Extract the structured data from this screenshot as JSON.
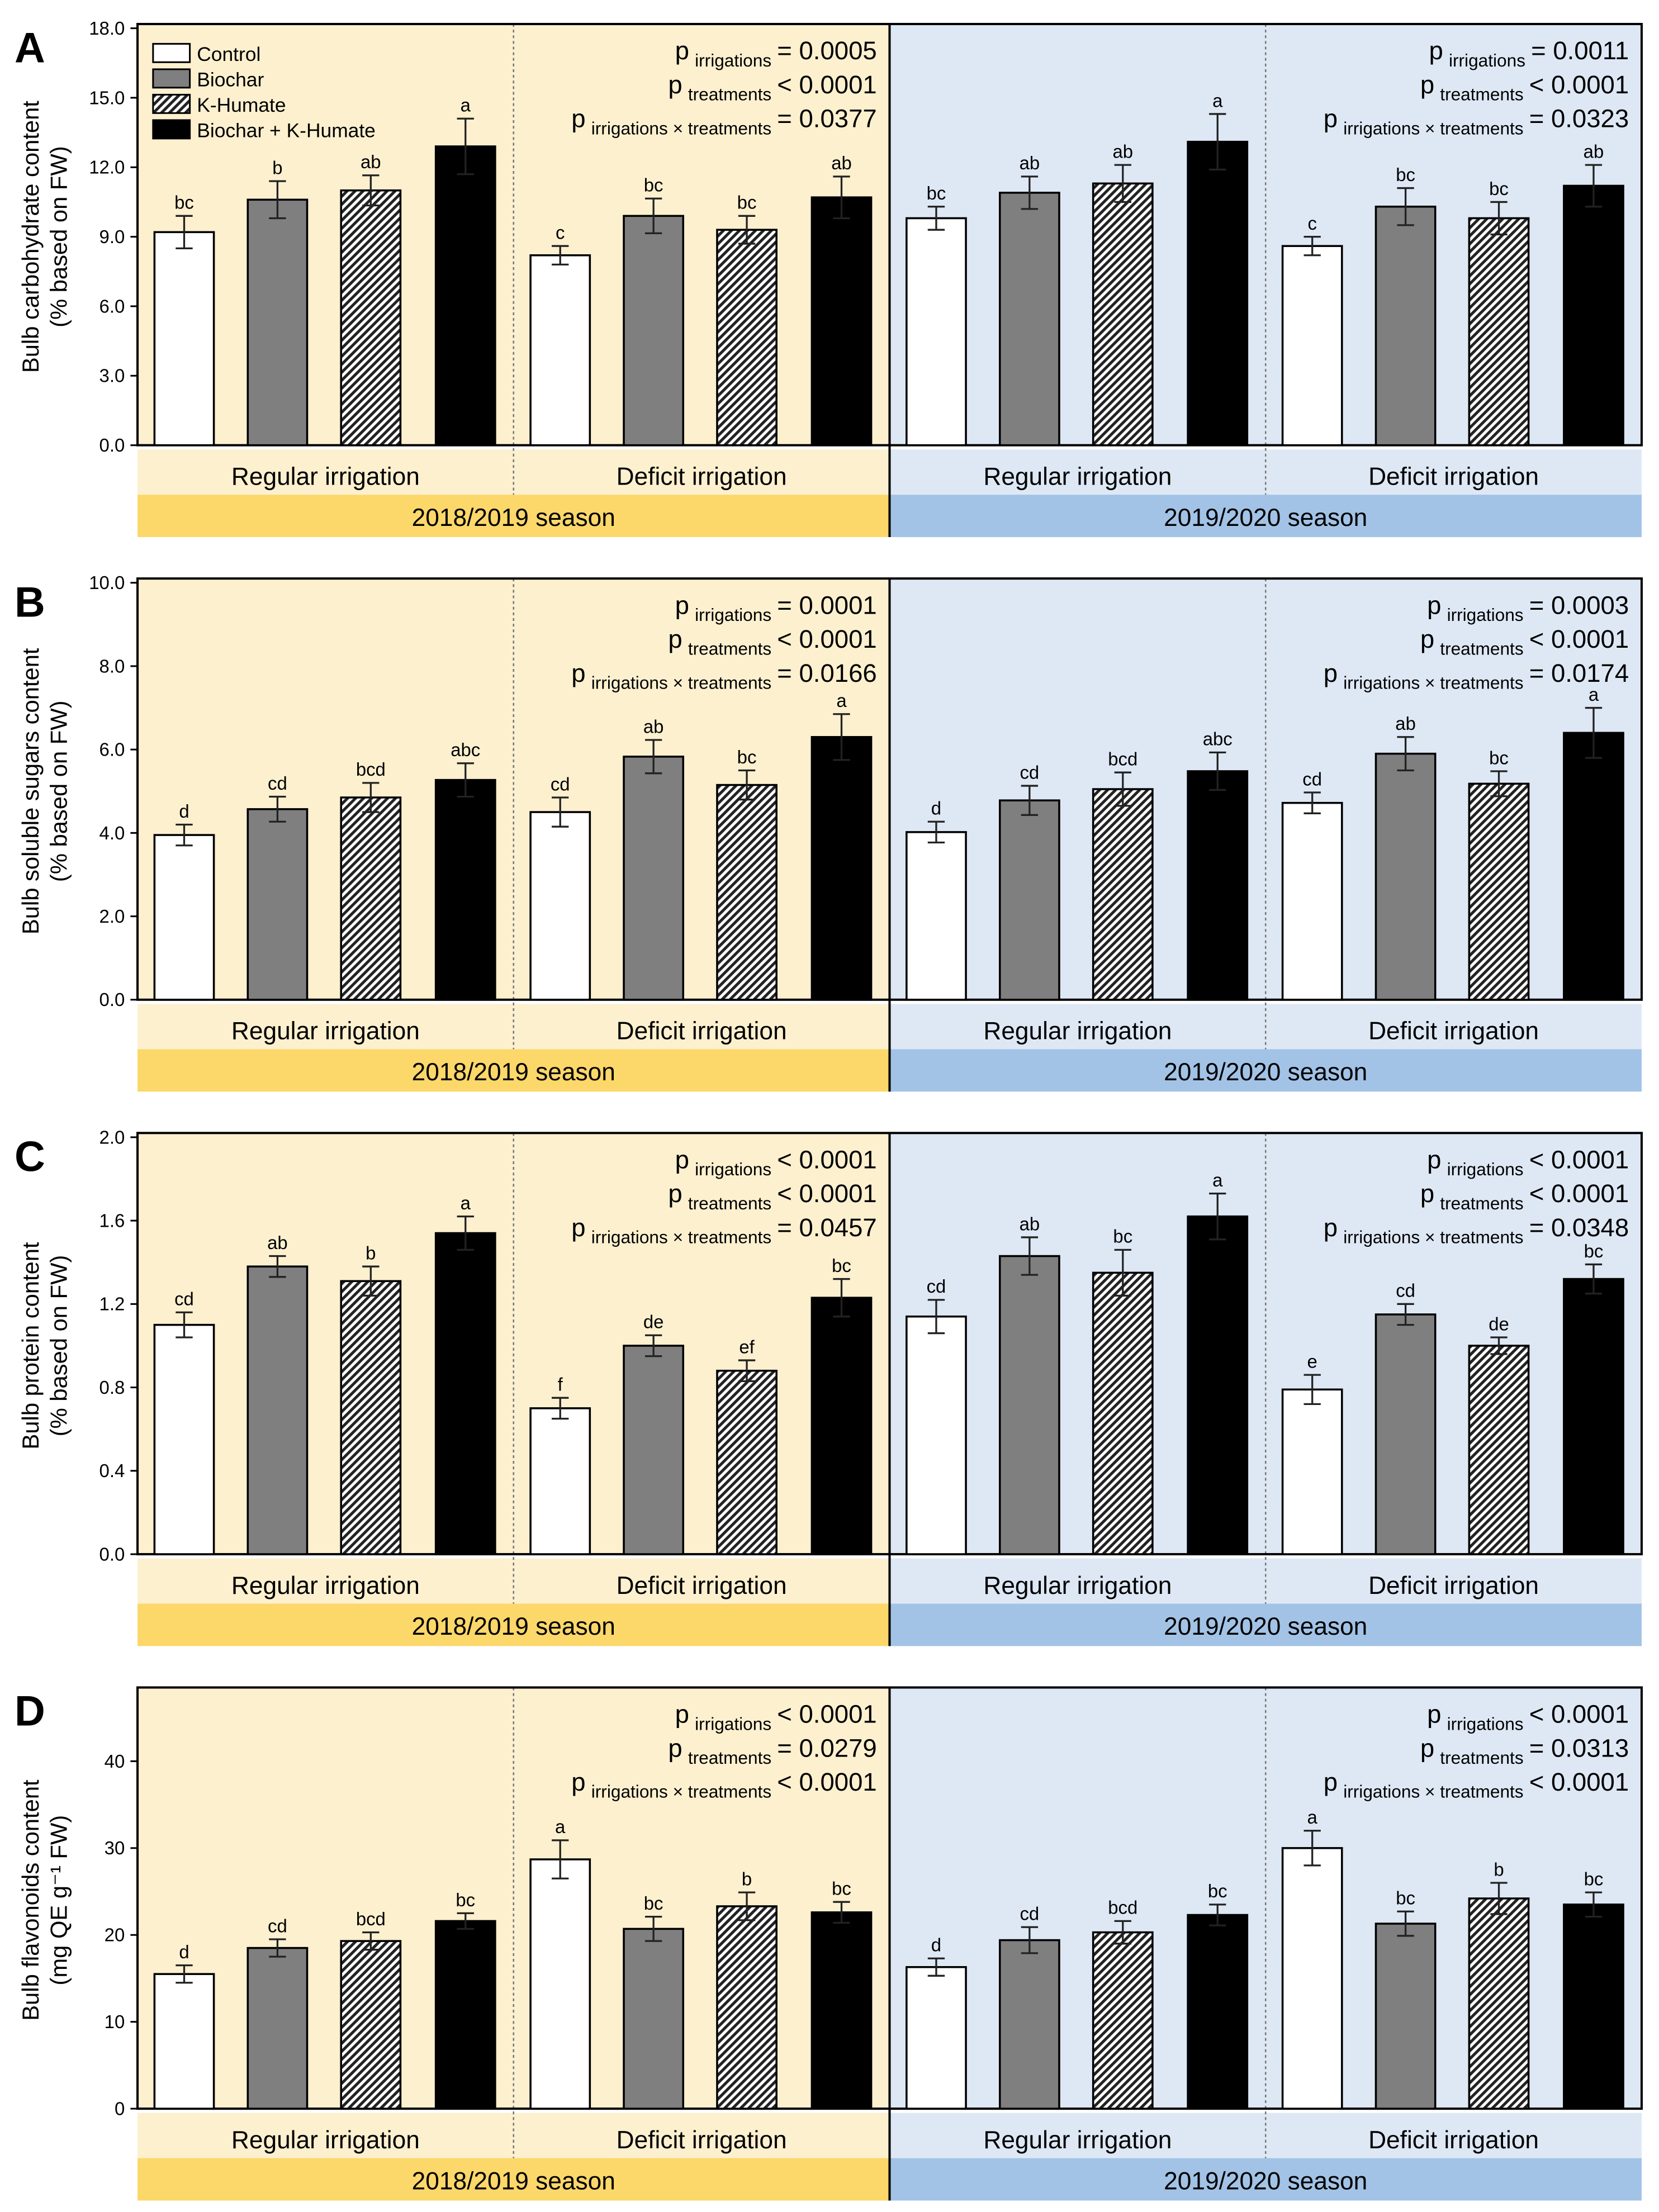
{
  "legend": [
    "Control",
    "Biochar",
    "K-Humate",
    "Biochar + K-Humate"
  ],
  "irrigation_labels": [
    "Regular irrigation",
    "Deficit irrigation"
  ],
  "season_labels": [
    "2018/2019 season",
    "2019/2020 season"
  ],
  "p_labels": {
    "p": "p",
    "irr": "irrigations",
    "trt": "treatments",
    "int": "irrigations × treatments"
  },
  "colors": {
    "season1_bg": "#fdf0cf",
    "season1_band": "#fcd76a",
    "season2_bg": "#dee8f5",
    "season2_band": "#a2c3e6",
    "biochar": "#7f7f7f",
    "combo": "#000000",
    "control": "#ffffff"
  },
  "chart_data": [
    {
      "type": "bar",
      "panel": "A",
      "ylabel": [
        "Bulb carbohydrate content",
        "(% based on FW)"
      ],
      "ylim": [
        0,
        18
      ],
      "ticks": [
        0,
        3,
        6,
        9,
        12,
        15,
        18
      ],
      "tick_labels": [
        "0.0",
        "3.0",
        "6.0",
        "9.0",
        "12.0",
        "15.0",
        "18.0"
      ],
      "groups": [
        {
          "season": "2018/2019",
          "irrigation": "Regular",
          "values": [
            9.2,
            10.6,
            11.0,
            12.9
          ],
          "errors": [
            0.7,
            0.8,
            0.65,
            1.2
          ],
          "letters": [
            "bc",
            "b",
            "ab",
            "a"
          ]
        },
        {
          "season": "2018/2019",
          "irrigation": "Deficit",
          "values": [
            8.2,
            9.9,
            9.3,
            10.7
          ],
          "errors": [
            0.4,
            0.75,
            0.6,
            0.9
          ],
          "letters": [
            "c",
            "bc",
            "bc",
            "ab"
          ]
        },
        {
          "season": "2019/2020",
          "irrigation": "Regular",
          "values": [
            9.8,
            10.9,
            11.3,
            13.1
          ],
          "errors": [
            0.5,
            0.7,
            0.8,
            1.2
          ],
          "letters": [
            "bc",
            "ab",
            "ab",
            "a"
          ]
        },
        {
          "season": "2019/2020",
          "irrigation": "Deficit",
          "values": [
            8.6,
            10.3,
            9.8,
            11.2
          ],
          "errors": [
            0.4,
            0.8,
            0.7,
            0.9
          ],
          "letters": [
            "c",
            "bc",
            "bc",
            "ab"
          ]
        }
      ],
      "pvalues": [
        [
          "= 0.0005",
          "< 0.0001",
          "= 0.0377"
        ],
        [
          "= 0.0011",
          "< 0.0001",
          "= 0.0323"
        ]
      ]
    },
    {
      "type": "bar",
      "panel": "B",
      "ylabel": [
        "Bulb soluble sugars content",
        "(% based on FW)"
      ],
      "ylim": [
        0,
        10
      ],
      "ticks": [
        0,
        2,
        4,
        6,
        8,
        10
      ],
      "tick_labels": [
        "0.0",
        "2.0",
        "4.0",
        "6.0",
        "8.0",
        "10.0"
      ],
      "groups": [
        {
          "season": "2018/2019",
          "irrigation": "Regular",
          "values": [
            3.95,
            4.57,
            4.85,
            5.27
          ],
          "errors": [
            0.25,
            0.3,
            0.35,
            0.4
          ],
          "letters": [
            "d",
            "cd",
            "bcd",
            "abc"
          ]
        },
        {
          "season": "2018/2019",
          "irrigation": "Deficit",
          "values": [
            4.5,
            5.83,
            5.15,
            6.3
          ],
          "errors": [
            0.35,
            0.4,
            0.35,
            0.55
          ],
          "letters": [
            "cd",
            "ab",
            "bc",
            "a"
          ]
        },
        {
          "season": "2019/2020",
          "irrigation": "Regular",
          "values": [
            4.02,
            4.78,
            5.05,
            5.48
          ],
          "errors": [
            0.25,
            0.35,
            0.4,
            0.45
          ],
          "letters": [
            "d",
            "cd",
            "bcd",
            "abc"
          ]
        },
        {
          "season": "2019/2020",
          "irrigation": "Deficit",
          "values": [
            4.72,
            5.9,
            5.18,
            6.4
          ],
          "errors": [
            0.25,
            0.4,
            0.3,
            0.6
          ],
          "letters": [
            "cd",
            "ab",
            "bc",
            "a"
          ]
        }
      ],
      "pvalues": [
        [
          "= 0.0001",
          "< 0.0001",
          "= 0.0166"
        ],
        [
          "= 0.0003",
          "< 0.0001",
          "= 0.0174"
        ]
      ]
    },
    {
      "type": "bar",
      "panel": "C",
      "ylabel": [
        "Bulb protein content",
        "(% based on FW)"
      ],
      "ylim": [
        0,
        2
      ],
      "ticks": [
        0,
        0.4,
        0.8,
        1.2,
        1.6,
        2.0
      ],
      "tick_labels": [
        "0.0",
        "0.4",
        "0.8",
        "1.2",
        "1.6",
        "2.0"
      ],
      "groups": [
        {
          "season": "2018/2019",
          "irrigation": "Regular",
          "values": [
            1.1,
            1.38,
            1.31,
            1.54
          ],
          "errors": [
            0.06,
            0.05,
            0.07,
            0.08
          ],
          "letters": [
            "cd",
            "ab",
            "b",
            "a"
          ]
        },
        {
          "season": "2018/2019",
          "irrigation": "Deficit",
          "values": [
            0.7,
            1.0,
            0.88,
            1.23
          ],
          "errors": [
            0.05,
            0.05,
            0.05,
            0.09
          ],
          "letters": [
            "f",
            "de",
            "ef",
            "bc"
          ]
        },
        {
          "season": "2019/2020",
          "irrigation": "Regular",
          "values": [
            1.14,
            1.43,
            1.35,
            1.62
          ],
          "errors": [
            0.08,
            0.09,
            0.11,
            0.11
          ],
          "letters": [
            "cd",
            "ab",
            "bc",
            "a"
          ]
        },
        {
          "season": "2019/2020",
          "irrigation": "Deficit",
          "values": [
            0.79,
            1.15,
            1.0,
            1.32
          ],
          "errors": [
            0.07,
            0.05,
            0.04,
            0.07
          ],
          "letters": [
            "e",
            "cd",
            "de",
            "bc"
          ]
        }
      ],
      "pvalues": [
        [
          "< 0.0001",
          "< 0.0001",
          "= 0.0457"
        ],
        [
          "< 0.0001",
          "< 0.0001",
          "= 0.0348"
        ]
      ]
    },
    {
      "type": "bar",
      "panel": "D",
      "ylabel": [
        "Bulb flavonoids content",
        "(mg QE g⁻¹ FW)"
      ],
      "ylim": [
        0,
        48
      ],
      "ticks": [
        0,
        10,
        20,
        30,
        40
      ],
      "tick_labels": [
        "0",
        "10",
        "20",
        "30",
        "40"
      ],
      "groups": [
        {
          "season": "2018/2019",
          "irrigation": "Regular",
          "values": [
            15.5,
            18.5,
            19.3,
            21.6
          ],
          "errors": [
            1.0,
            1.0,
            1.0,
            0.9
          ],
          "letters": [
            "d",
            "cd",
            "bcd",
            "bc"
          ]
        },
        {
          "season": "2018/2019",
          "irrigation": "Deficit",
          "values": [
            28.7,
            20.7,
            23.3,
            22.6
          ],
          "errors": [
            2.2,
            1.4,
            1.6,
            1.2
          ],
          "letters": [
            "a",
            "bc",
            "b",
            "bc"
          ]
        },
        {
          "season": "2019/2020",
          "irrigation": "Regular",
          "values": [
            16.3,
            19.4,
            20.3,
            22.3
          ],
          "errors": [
            1.0,
            1.5,
            1.3,
            1.2
          ],
          "letters": [
            "d",
            "cd",
            "bcd",
            "bc"
          ]
        },
        {
          "season": "2019/2020",
          "irrigation": "Deficit",
          "values": [
            30.0,
            21.3,
            24.2,
            23.5
          ],
          "errors": [
            2.0,
            1.4,
            1.8,
            1.4
          ],
          "letters": [
            "a",
            "bc",
            "b",
            "bc"
          ]
        }
      ],
      "pvalues": [
        [
          "< 0.0001",
          "= 0.0279",
          "< 0.0001"
        ],
        [
          "< 0.0001",
          "= 0.0313",
          "< 0.0001"
        ]
      ]
    }
  ]
}
